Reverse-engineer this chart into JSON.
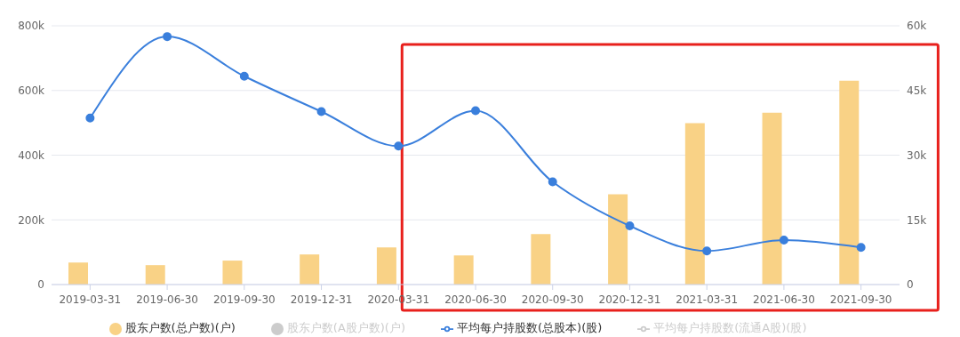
{
  "chart_data": {
    "type": "bar",
    "categories": [
      "2019-03-31",
      "2019-06-30",
      "2019-09-30",
      "2019-12-31",
      "2020-03-31",
      "2020-06-30",
      "2020-09-30",
      "2020-12-31",
      "2021-03-31",
      "2021-06-30",
      "2021-09-30"
    ],
    "series": [
      {
        "name": "股东户数(总户数)(户)",
        "color": "#f9d286",
        "values": [
          68000,
          60000,
          74000,
          93000,
          115000,
          90000,
          156000,
          279000,
          499000,
          531000,
          630000
        ]
      },
      {
        "name": "股东户数(A股户数)(户)",
        "color": "#cccccc",
        "values": [
          null,
          null,
          null,
          null,
          null,
          null,
          null,
          null,
          null,
          null,
          null
        ]
      },
      {
        "name": "平均每户持股数(总股本)(股)",
        "type": "line",
        "axis": "y2",
        "color": "#3a7fdc",
        "marker": "circle",
        "values": [
          38600,
          57500,
          48300,
          40100,
          32100,
          40300,
          23800,
          13600,
          7800,
          10300,
          8600
        ]
      },
      {
        "name": "平均每户持股数(流通A股)(股)",
        "type": "line",
        "axis": "y2",
        "color": "#cccccc",
        "marker": "circle",
        "values": [
          null,
          null,
          null,
          null,
          null,
          null,
          null,
          null,
          null,
          null,
          null
        ]
      }
    ],
    "ylim": [
      0,
      800000
    ],
    "yticks": [
      {
        "value": 0,
        "label": "0"
      },
      {
        "value": 200000,
        "label": "200k"
      },
      {
        "value": 400000,
        "label": "400k"
      },
      {
        "value": 600000,
        "label": "600k"
      },
      {
        "value": 800000,
        "label": "800k"
      }
    ],
    "y2lim": [
      0,
      60000
    ],
    "y2ticks": [
      {
        "value": 0,
        "label": "0"
      },
      {
        "value": 15000,
        "label": "15k"
      },
      {
        "value": 30000,
        "label": "30k"
      },
      {
        "value": 45000,
        "label": "45k"
      },
      {
        "value": 60000,
        "label": "60k"
      }
    ],
    "grid": "y",
    "legend": "bottom"
  }
}
